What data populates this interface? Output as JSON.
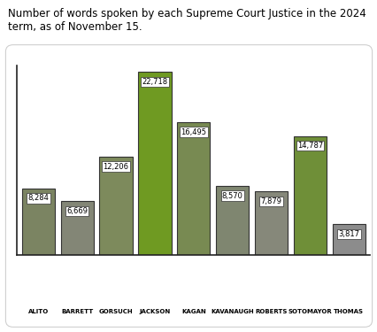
{
  "chart_data": {
    "type": "bar",
    "title": "Number of words spoken by each Supreme Court Justice in the 2024 term, as of November 15.",
    "categories": [
      "ALITO",
      "BARRETT",
      "GORSUCH",
      "JACKSON",
      "KAGAN",
      "KAVANAUGH",
      "ROBERTS",
      "SOTOMAYOR",
      "THOMAS"
    ],
    "values": [
      8284,
      6669,
      12206,
      22718,
      16495,
      8570,
      7879,
      14787,
      3817
    ],
    "value_labels": [
      "8,284",
      "6,669",
      "12,206",
      "22,718",
      "16,495",
      "8,570",
      "7,879",
      "14,787",
      "3,817"
    ],
    "colors": [
      "#7b8462",
      "#838676",
      "#7d8a5c",
      "#6f9a22",
      "#788a52",
      "#7f8670",
      "#86887a",
      "#6f8f38",
      "#8c8c8c"
    ],
    "ylim": [
      0,
      23500
    ],
    "yticks": [],
    "grid": false,
    "data_labels": true,
    "tick_labels": "x"
  }
}
